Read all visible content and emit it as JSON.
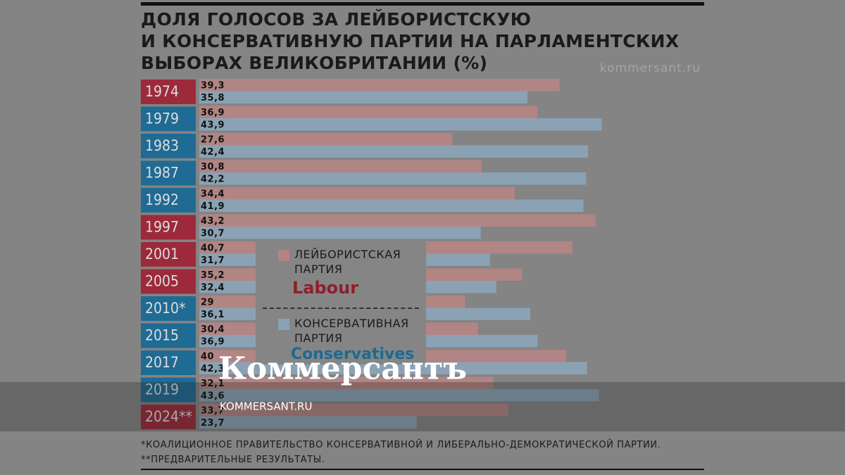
{
  "chart_data": {
    "type": "hbar",
    "title": "ДОЛЯ ГОЛОСОВ ЗА ЛЕЙБОРИСТСКУЮ\nИ КОНСЕРВАТИВНУЮ ПАРТИИ НА ПАРЛАМЕНТСКИХ\nВЫБОРАХ ВЕЛИКОБРИТАНИИ (%)",
    "categories": [
      "1974",
      "1979",
      "1983",
      "1987",
      "1992",
      "1997",
      "2001",
      "2005",
      "2010*",
      "2015",
      "2017",
      "2019",
      "2024**"
    ],
    "series": [
      {
        "name": "ЛЕЙБОРИСТСКАЯ ПАРТИЯ",
        "logo": "Labour",
        "color": "#b08584",
        "box_color": "#9c2a3b",
        "logo_color": "#8e1f2d",
        "values": [
          39.3,
          36.9,
          27.6,
          30.8,
          34.4,
          43.2,
          40.7,
          35.2,
          29,
          30.4,
          40,
          32.1,
          33.7
        ],
        "value_labels": [
          "39,3",
          "36,9",
          "27,6",
          "30,8",
          "34,4",
          "43,2",
          "40,7",
          "35,2",
          "29",
          "30,4",
          "40",
          "32,1",
          "33,7"
        ]
      },
      {
        "name": "КОНСЕРВАТИВНАЯ ПАРТИЯ",
        "logo": "Conservatives",
        "color": "#8aa2b4",
        "box_color": "#1f6b94",
        "logo_color": "#1c6a92",
        "values": [
          35.8,
          43.9,
          42.4,
          42.2,
          41.9,
          30.7,
          31.7,
          32.4,
          36.1,
          36.9,
          42.3,
          43.6,
          23.7
        ],
        "value_labels": [
          "35,8",
          "43,9",
          "42,4",
          "42,2",
          "41,9",
          "30,7",
          "31,7",
          "32,4",
          "36,1",
          "36,9",
          "42,3",
          "43,6",
          "23,7"
        ]
      }
    ],
    "xlim": [
      0,
      50
    ],
    "notes": [
      "*КОАЛИЦИОННОЕ ПРАВИТЕЛЬСТВО КОНСЕРВАТИВНОЙ И ЛИБЕРАЛЬНО-ДЕМОКРАТИЧЕСКОЙ ПАРТИИ.",
      "**ПРЕДВАРИТЕЛЬНЫЕ РЕЗУЛЬТАТЫ."
    ]
  },
  "watermark": {
    "source": "kommersant.ru",
    "brand": "Коммерсантъ",
    "site": "KOMMERSANT.RU"
  }
}
